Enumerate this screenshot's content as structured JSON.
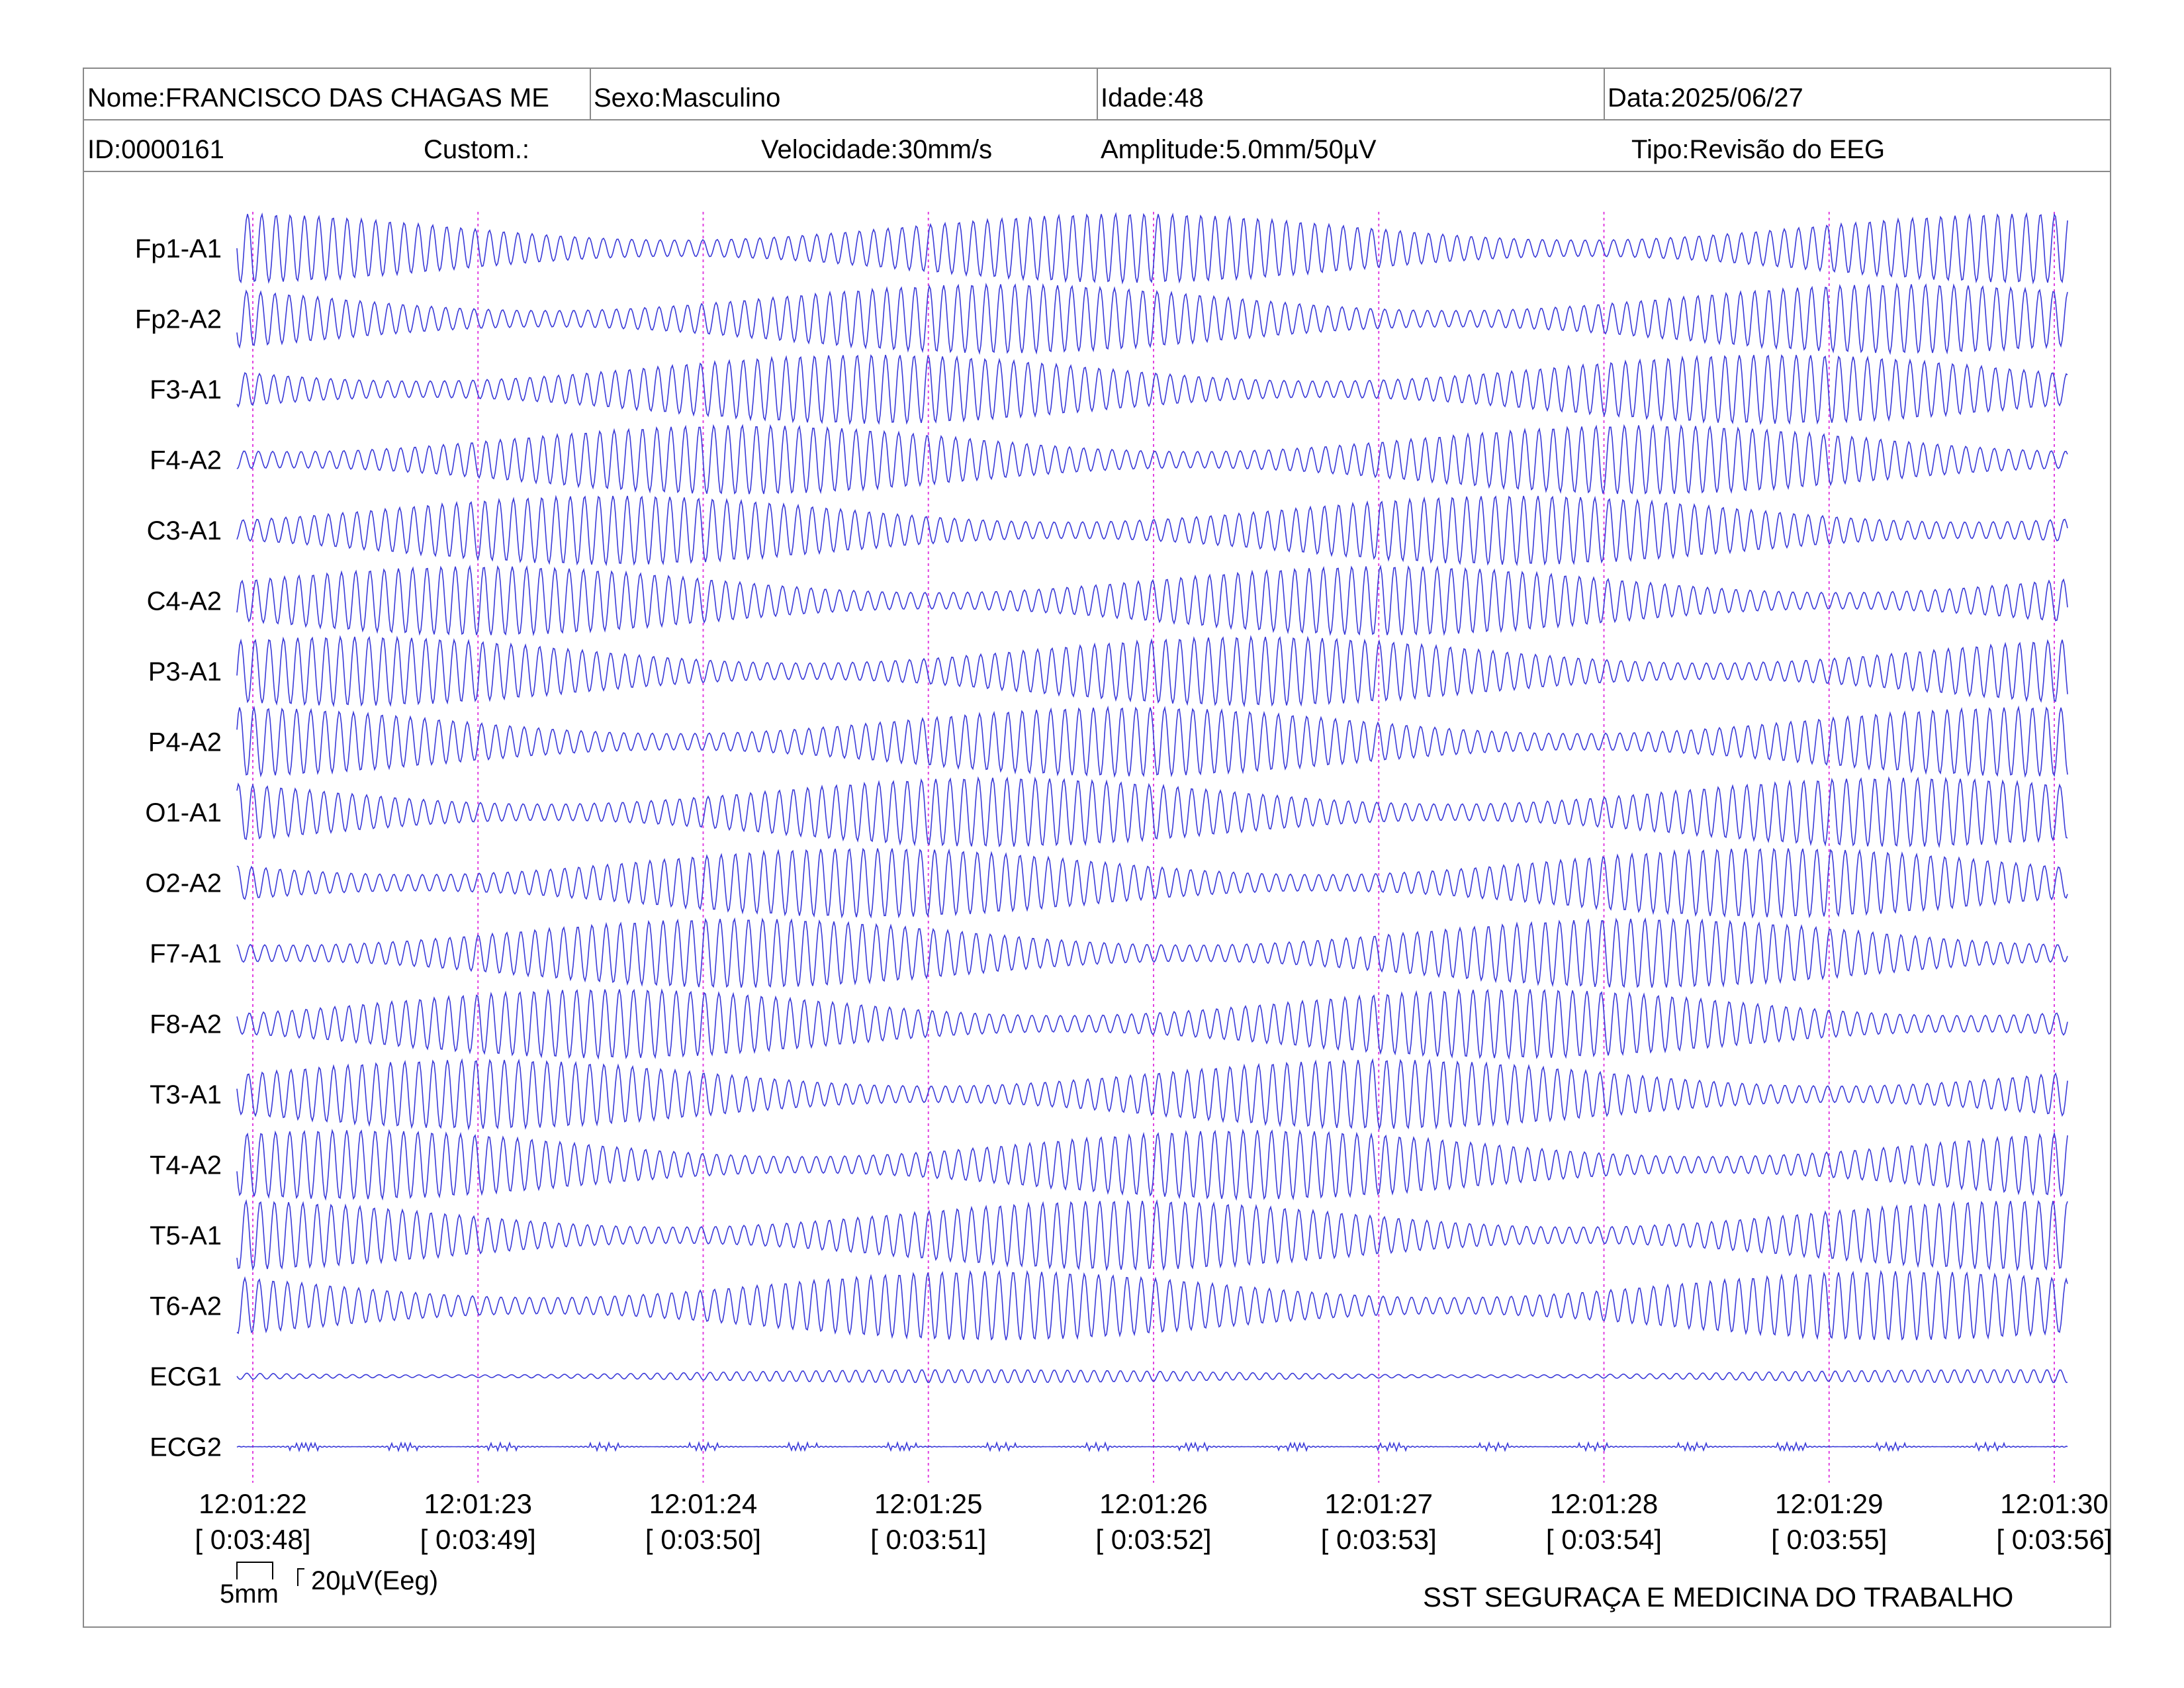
{
  "header": {
    "nome": "Nome:FRANCISCO DAS CHAGAS ME",
    "sexo": "Sexo:Masculino",
    "idade": "Idade:48",
    "data": "Data:2025/06/27",
    "id": "ID:0000161",
    "custom": "Custom.:",
    "velocidade": "Velocidade:30mm/s",
    "amplitude": "Amplitude:5.0mm/50µV",
    "tipo": "Tipo:Revisão do EEG"
  },
  "scale": {
    "time_label": "5mm",
    "amplitude_label": "20µV(Eeg)"
  },
  "footer": "SST SEGURAÇA E MEDICINA DO TRABALHO",
  "colors": {
    "trace": "#3a3ad8",
    "marker": "#e040e0",
    "border": "#8a8a8a"
  },
  "chart_data": {
    "type": "line",
    "channels": [
      "Fp1-A1",
      "Fp2-A2",
      "F3-A1",
      "F4-A2",
      "C3-A1",
      "C4-A2",
      "P3-A1",
      "P4-A2",
      "O1-A1",
      "O2-A2",
      "F7-A1",
      "F8-A2",
      "T3-A1",
      "T4-A2",
      "T5-A1",
      "T6-A2",
      "ECG1",
      "ECG2"
    ],
    "time_markers": [
      {
        "time": "12:01:22",
        "elapsed": "[ 0:03:48]"
      },
      {
        "time": "12:01:23",
        "elapsed": "[ 0:03:49]"
      },
      {
        "time": "12:01:24",
        "elapsed": "[ 0:03:50]"
      },
      {
        "time": "12:01:25",
        "elapsed": "[ 0:03:51]"
      },
      {
        "time": "12:01:26",
        "elapsed": "[ 0:03:52]"
      },
      {
        "time": "12:01:27",
        "elapsed": "[ 0:03:53]"
      },
      {
        "time": "12:01:28",
        "elapsed": "[ 0:03:54]"
      },
      {
        "time": "12:01:29",
        "elapsed": "[ 0:03:55]"
      },
      {
        "time": "12:01:30",
        "elapsed": "[ 0:03:56]"
      }
    ],
    "speed": "30mm/s",
    "amplitude": "5.0mm/50µV",
    "grid": false
  }
}
